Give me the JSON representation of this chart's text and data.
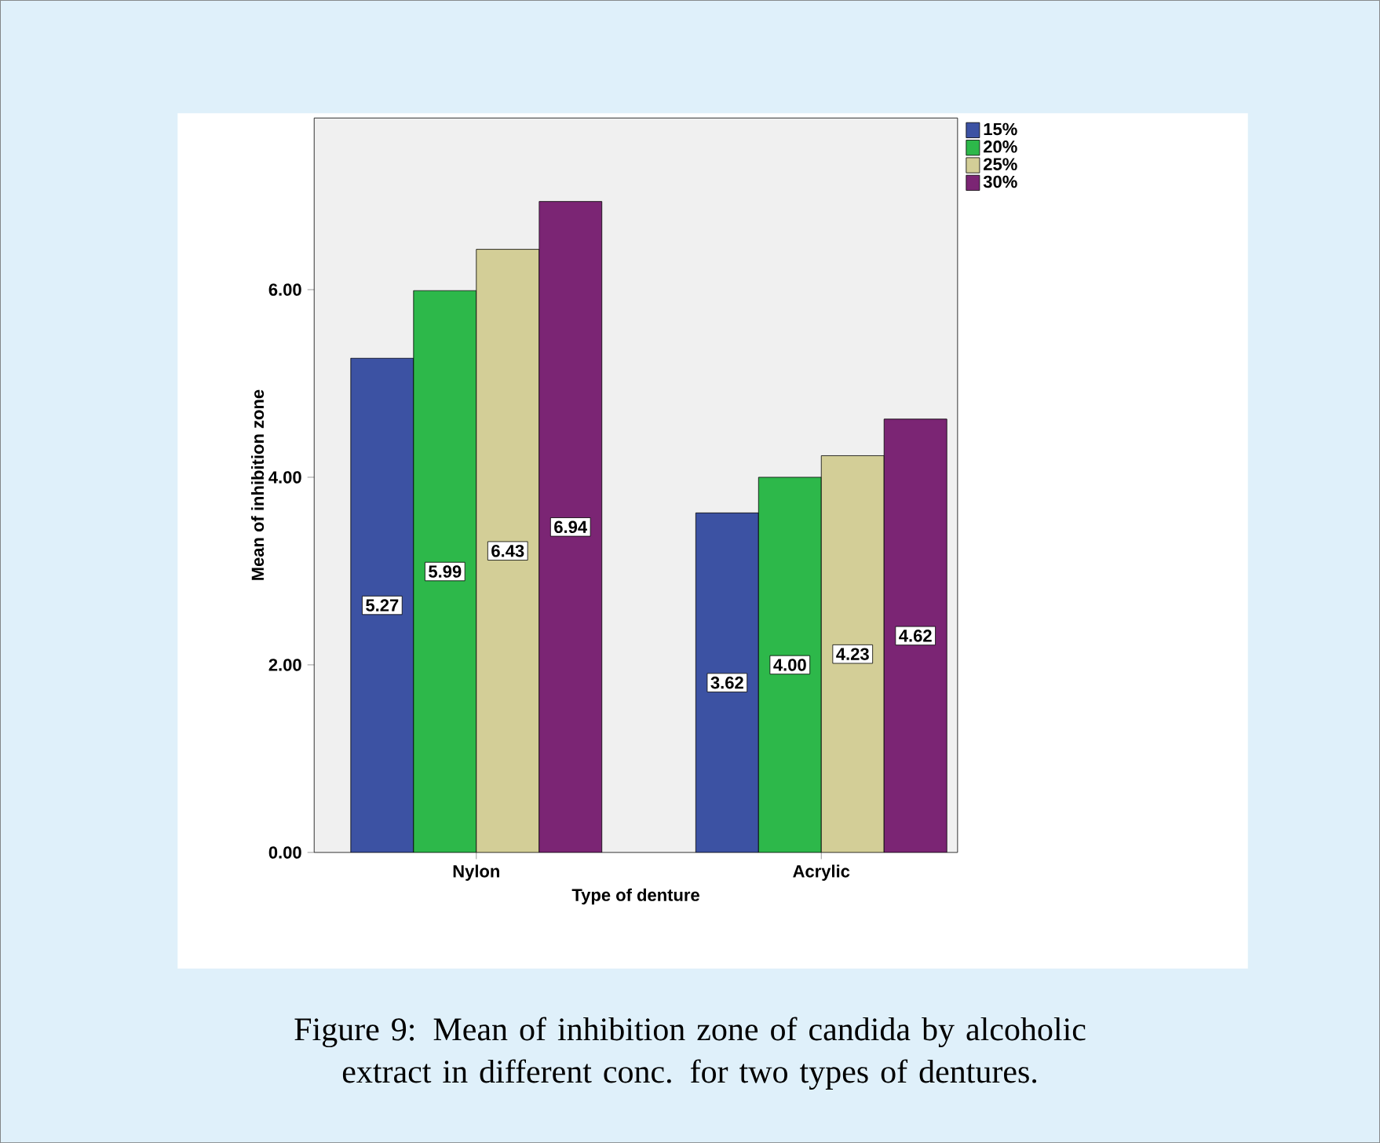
{
  "chart_data": {
    "type": "bar",
    "xlabel": "Type of denture",
    "ylabel": "Mean of inhibition zone",
    "categories": [
      "Nylon",
      "Acrylic"
    ],
    "series": [
      {
        "name": "15%",
        "color": "#3c52a3",
        "values": [
          5.27,
          3.62
        ],
        "value_labels": [
          "5.27",
          "3.62"
        ]
      },
      {
        "name": "20%",
        "color": "#2db84a",
        "values": [
          5.99,
          4.0
        ],
        "value_labels": [
          "5.99",
          "4.00"
        ]
      },
      {
        "name": "25%",
        "color": "#d3ce97",
        "values": [
          6.43,
          4.23
        ],
        "value_labels": [
          "6.43",
          "4.23"
        ]
      },
      {
        "name": "30%",
        "color": "#7b2574",
        "values": [
          6.94,
          4.62
        ],
        "value_labels": [
          "6.94",
          "4.62"
        ]
      }
    ],
    "ylim": [
      0,
      7.83
    ],
    "yticks": [
      {
        "value": 0,
        "label": "0.00"
      },
      {
        "value": 2,
        "label": "2.00"
      },
      {
        "value": 4,
        "label": "4.00"
      },
      {
        "value": 6,
        "label": "6.00"
      }
    ],
    "legend": "top right",
    "grid": false,
    "annotations": [
      "Figure 9: Mean of inhibition zone of candida by alcoholic extract in different conc. for two types of dentures."
    ]
  }
}
